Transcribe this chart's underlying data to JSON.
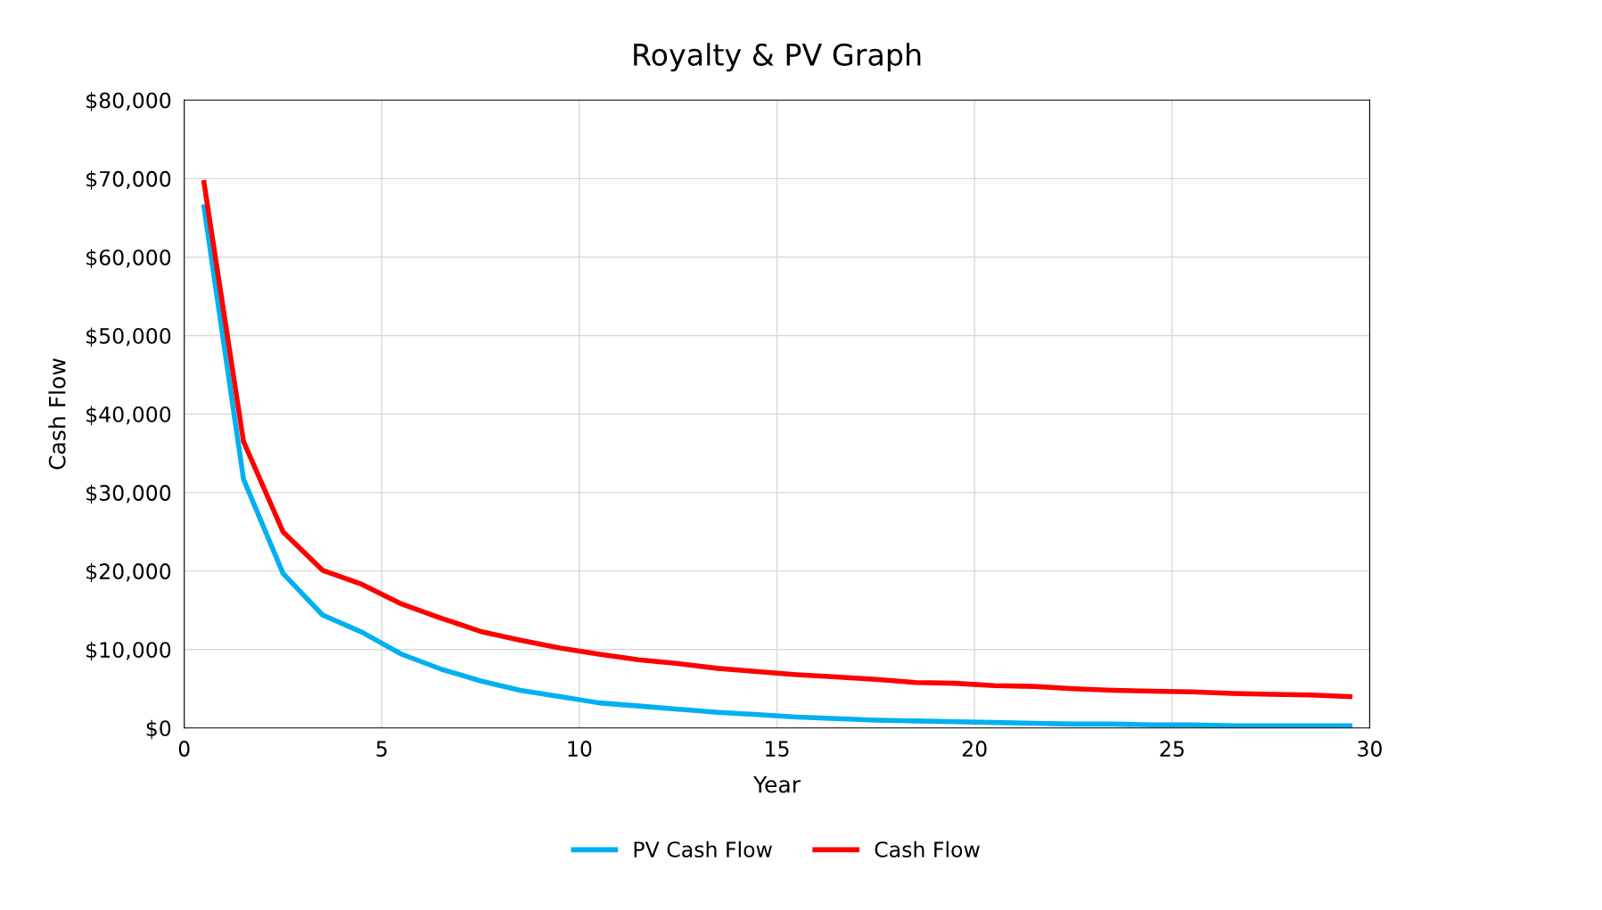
{
  "chart_data": {
    "type": "line",
    "title": "Royalty & PV Graph",
    "xlabel": "Year",
    "ylabel": "Cash Flow",
    "x": [
      0.5,
      1.5,
      2.5,
      3.5,
      4.5,
      5.5,
      6.5,
      7.5,
      8.5,
      9.5,
      10.5,
      11.5,
      12.5,
      13.5,
      14.5,
      15.5,
      16.5,
      17.5,
      18.5,
      19.5,
      20.5,
      21.5,
      22.5,
      23.5,
      24.5,
      25.5,
      26.5,
      27.5,
      28.5,
      29.5
    ],
    "series": [
      {
        "name": "PV Cash Flow",
        "color": "#00b0f0",
        "values": [
          66400,
          31700,
          19700,
          14400,
          12200,
          9400,
          7500,
          6000,
          4800,
          4000,
          3200,
          2800,
          2400,
          2000,
          1700,
          1400,
          1200,
          1000,
          900,
          800,
          700,
          600,
          500,
          500,
          400,
          400,
          300,
          300,
          300,
          300
        ]
      },
      {
        "name": "Cash Flow",
        "color": "#ff0000",
        "values": [
          69500,
          36500,
          25000,
          20100,
          18300,
          15800,
          14000,
          12300,
          11200,
          10200,
          9400,
          8700,
          8200,
          7600,
          7200,
          6800,
          6500,
          6200,
          5800,
          5700,
          5400,
          5300,
          5000,
          4800,
          4700,
          4600,
          4400,
          4300,
          4200,
          4000
        ]
      }
    ],
    "xlim": [
      0,
      30
    ],
    "xticks": [
      0,
      5,
      10,
      15,
      20,
      25,
      30
    ],
    "ylim": [
      0,
      80000
    ],
    "yticks": [
      {
        "value": 0,
        "label": "$0"
      },
      {
        "value": 10000,
        "label": "$10,000"
      },
      {
        "value": 20000,
        "label": "$20,000"
      },
      {
        "value": 30000,
        "label": "$30,000"
      },
      {
        "value": 40000,
        "label": "$40,000"
      },
      {
        "value": 50000,
        "label": "$50,000"
      },
      {
        "value": 60000,
        "label": "$60,000"
      },
      {
        "value": 70000,
        "label": "$70,000"
      },
      {
        "value": 80000,
        "label": "$80,000"
      }
    ],
    "grid": true,
    "legend": "bottom",
    "marker": "none",
    "line_style": "solid"
  }
}
